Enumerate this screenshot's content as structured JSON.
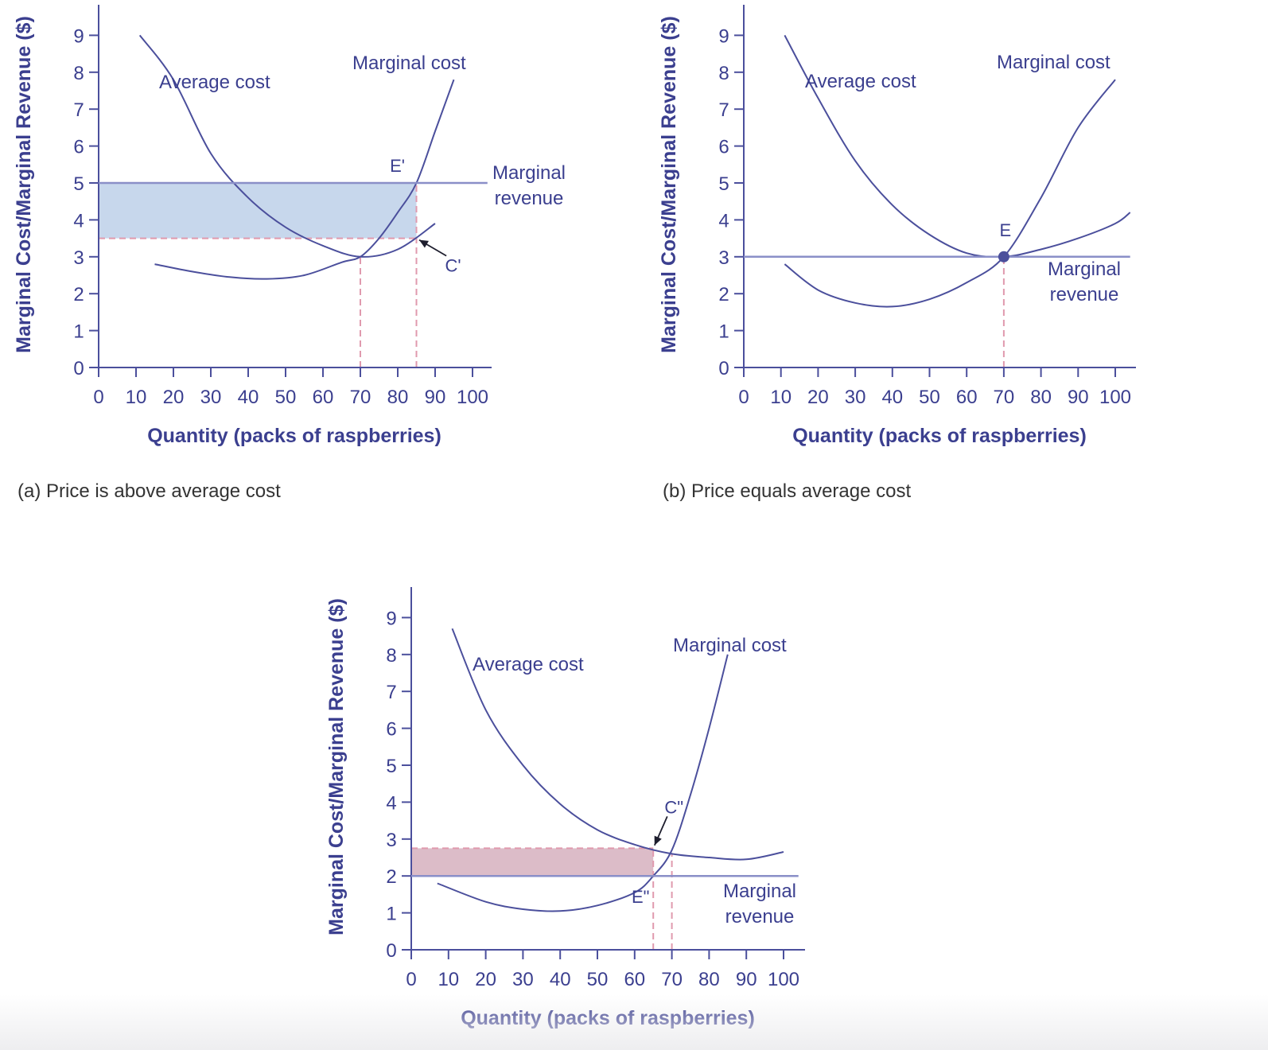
{
  "colors": {
    "ink": "#3b3f8f",
    "curve": "#4b4f9c",
    "mr_line": "#8a8fc8",
    "dashed": "#e09aae",
    "profit_fill": "#c7d7ec",
    "loss_fill": "#dcbcc8",
    "caption": "#333333"
  },
  "chart_data": [
    {
      "id": "a",
      "type": "line",
      "caption": "(a) Price is above average cost",
      "xlabel": "Quantity (packs of raspberries)",
      "ylabel": "Marginal Cost/Marginal Revenue ($)",
      "xlim": [
        0,
        105
      ],
      "ylim": [
        0,
        9.9
      ],
      "xticks": [
        "0",
        "10",
        "20",
        "30",
        "40",
        "50",
        "60",
        "70",
        "80",
        "90",
        "100"
      ],
      "yticks": [
        "0",
        "1",
        "2",
        "3",
        "4",
        "5",
        "6",
        "7",
        "8",
        "9"
      ],
      "series": [
        {
          "name": "Average cost",
          "role": "ac",
          "label": "Average cost",
          "x": [
            11,
            20,
            30,
            40,
            50,
            60,
            70,
            80,
            90
          ],
          "y": [
            9,
            7.8,
            5.8,
            4.6,
            3.8,
            3.3,
            3,
            3.2,
            3.9
          ]
        },
        {
          "name": "Marginal cost",
          "role": "mc",
          "label": "Marginal cost",
          "x": [
            15,
            25,
            35,
            45,
            55,
            65,
            70,
            75,
            80,
            85,
            90,
            95
          ],
          "y": [
            2.8,
            2.6,
            2.45,
            2.4,
            2.5,
            2.85,
            3,
            3.5,
            4.2,
            5,
            6.4,
            7.8
          ]
        },
        {
          "name": "Marginal revenue",
          "role": "mr",
          "label_lines": [
            "Marginal",
            "revenue"
          ],
          "x": [
            0,
            104
          ],
          "y": [
            5,
            5
          ]
        }
      ],
      "shaded_region": {
        "kind": "profit",
        "x": [
          0,
          85
        ],
        "y": [
          3.5,
          5
        ]
      },
      "dashed_lines": [
        {
          "x": [
            0,
            85
          ],
          "y": [
            3.5,
            3.5
          ]
        },
        {
          "x": [
            70,
            70
          ],
          "y": [
            0,
            3
          ]
        },
        {
          "x": [
            85,
            85
          ],
          "y": [
            0,
            5
          ]
        }
      ],
      "points": [
        {
          "label": "E'",
          "x": 85,
          "y": 5,
          "marker": false
        },
        {
          "label": "C'",
          "x": 85,
          "y": 3.5,
          "marker": false,
          "arrow": true
        }
      ]
    },
    {
      "id": "b",
      "type": "line",
      "caption": "(b) Price equals average cost",
      "xlabel": "Quantity (packs of raspberries)",
      "ylabel": "Marginal Cost/Marginal Revenue ($)",
      "xlim": [
        0,
        105
      ],
      "ylim": [
        0,
        9.9
      ],
      "xticks": [
        "0",
        "10",
        "20",
        "30",
        "40",
        "50",
        "60",
        "70",
        "80",
        "90",
        "100"
      ],
      "yticks": [
        "0",
        "1",
        "2",
        "3",
        "4",
        "5",
        "6",
        "7",
        "8",
        "9"
      ],
      "series": [
        {
          "name": "Average cost",
          "role": "ac",
          "label": "Average cost",
          "x": [
            11,
            20,
            30,
            40,
            50,
            60,
            70,
            80,
            90,
            100,
            104
          ],
          "y": [
            9,
            7.3,
            5.6,
            4.4,
            3.6,
            3.1,
            3,
            3.2,
            3.5,
            3.9,
            4.2
          ]
        },
        {
          "name": "Marginal cost",
          "role": "mc",
          "label": "Marginal cost",
          "x": [
            11,
            20,
            30,
            40,
            50,
            60,
            70,
            80,
            90,
            100
          ],
          "y": [
            2.8,
            2.1,
            1.75,
            1.65,
            1.85,
            2.3,
            3,
            4.6,
            6.5,
            7.8
          ]
        },
        {
          "name": "Marginal revenue",
          "role": "mr",
          "label_lines": [
            "Marginal",
            "revenue"
          ],
          "x": [
            0,
            104
          ],
          "y": [
            3,
            3
          ]
        }
      ],
      "dashed_lines": [
        {
          "x": [
            70,
            70
          ],
          "y": [
            0,
            3
          ]
        }
      ],
      "points": [
        {
          "label": "E",
          "x": 70,
          "y": 3,
          "marker": true
        }
      ]
    },
    {
      "id": "c",
      "type": "line",
      "caption": "",
      "xlabel": "Quantity (packs of raspberries)",
      "ylabel": "Marginal Cost/Marginal Revenue ($)",
      "xlim": [
        0,
        105
      ],
      "ylim": [
        0,
        9.9
      ],
      "xticks": [
        "0",
        "10",
        "20",
        "30",
        "40",
        "50",
        "60",
        "70",
        "80",
        "90",
        "100"
      ],
      "yticks": [
        "0",
        "1",
        "2",
        "3",
        "4",
        "5",
        "6",
        "7",
        "8",
        "9"
      ],
      "series": [
        {
          "name": "Average cost",
          "role": "ac",
          "label": "Average cost",
          "x": [
            11,
            20,
            30,
            40,
            50,
            60,
            70,
            80,
            90,
            100
          ],
          "y": [
            8.7,
            6.5,
            5,
            3.95,
            3.25,
            2.85,
            2.6,
            2.5,
            2.45,
            2.65
          ]
        },
        {
          "name": "Marginal cost",
          "role": "mc",
          "label": "Marginal cost",
          "x": [
            7,
            20,
            30,
            40,
            50,
            60,
            65,
            70,
            75,
            80,
            85
          ],
          "y": [
            1.8,
            1.3,
            1.1,
            1.05,
            1.2,
            1.55,
            2,
            2.7,
            4.2,
            6,
            8
          ]
        },
        {
          "name": "Marginal revenue",
          "role": "mr",
          "label_lines": [
            "Marginal",
            "revenue"
          ],
          "x": [
            0,
            104
          ],
          "y": [
            2,
            2
          ]
        }
      ],
      "shaded_region": {
        "kind": "loss",
        "x": [
          0,
          65
        ],
        "y": [
          2,
          2.75
        ]
      },
      "dashed_lines": [
        {
          "x": [
            0,
            65
          ],
          "y": [
            2.75,
            2.75
          ]
        },
        {
          "x": [
            65,
            65
          ],
          "y": [
            0,
            2.75
          ]
        },
        {
          "x": [
            70,
            70
          ],
          "y": [
            0,
            2.6
          ]
        }
      ],
      "points": [
        {
          "label": "E\"",
          "x": 65,
          "y": 2,
          "marker": false
        },
        {
          "label": "C\"",
          "x": 65,
          "y": 2.75,
          "marker": false,
          "arrow": true
        }
      ]
    }
  ]
}
